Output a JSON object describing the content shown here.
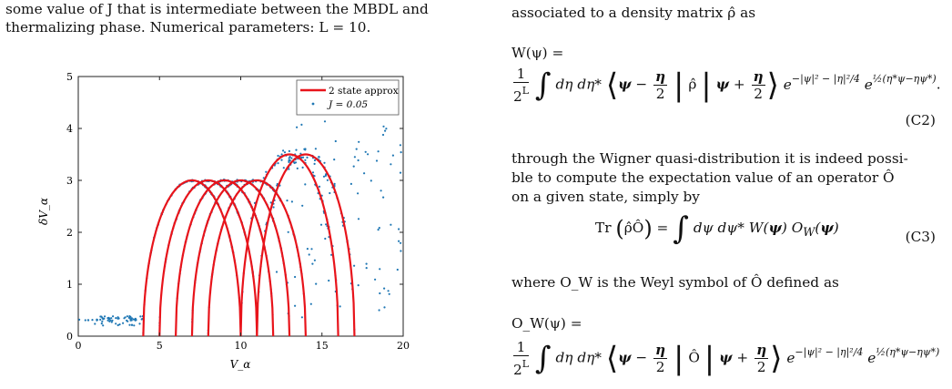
{
  "left_text": {
    "line1": "some value of J that is intermediate between the MBDL and",
    "line2": "thermalizing phase. Numerical parameters: L = 10."
  },
  "right_text": {
    "intro": "associated to a density matrix ρ̂ as",
    "eq_c2_lhs": "W(ψ) =",
    "eq_c2_tag": "(C2)",
    "para1_l1": "through the Wigner quasi-distribution it is indeed possi-",
    "para1_l2": "ble to compute the expectation value of an operator Ô",
    "para1_l3": "on a given state, simply by",
    "eq_c3_tag": "(C3)",
    "para2": "where O_W is the Weyl symbol of Ô defined as",
    "eq_c4_lhs": "O_W(ψ) ="
  },
  "chart_data": {
    "type": "scatter",
    "xlabel": "V_α",
    "ylabel": "δV_α",
    "xlim": [
      0,
      20
    ],
    "ylim": [
      0,
      5
    ],
    "xticks": [
      "0",
      "5",
      "10",
      "15",
      "20"
    ],
    "yticks": [
      "0",
      "1",
      "2",
      "3",
      "4",
      "5"
    ],
    "legend_position": "top-right",
    "series": [
      {
        "name": "2 state approx",
        "style": "line",
        "color": "#e8141b",
        "arcs": [
          {
            "x0": 4,
            "x1": 10,
            "peak": 3.0
          },
          {
            "x0": 5,
            "x1": 11,
            "peak": 3.0
          },
          {
            "x0": 6,
            "x1": 12,
            "peak": 3.0
          },
          {
            "x0": 7,
            "x1": 13,
            "peak": 3.0
          },
          {
            "x0": 8,
            "x1": 14,
            "peak": 3.0
          },
          {
            "x0": 10,
            "x1": 16,
            "peak": 3.5
          },
          {
            "x0": 11,
            "x1": 17,
            "peak": 3.5
          }
        ]
      },
      {
        "name": "J = 0.05",
        "style": "markers",
        "color": "#1f77b4"
      }
    ]
  },
  "colors": {
    "curve": "#e8141b",
    "dots": "#1f77b4"
  }
}
